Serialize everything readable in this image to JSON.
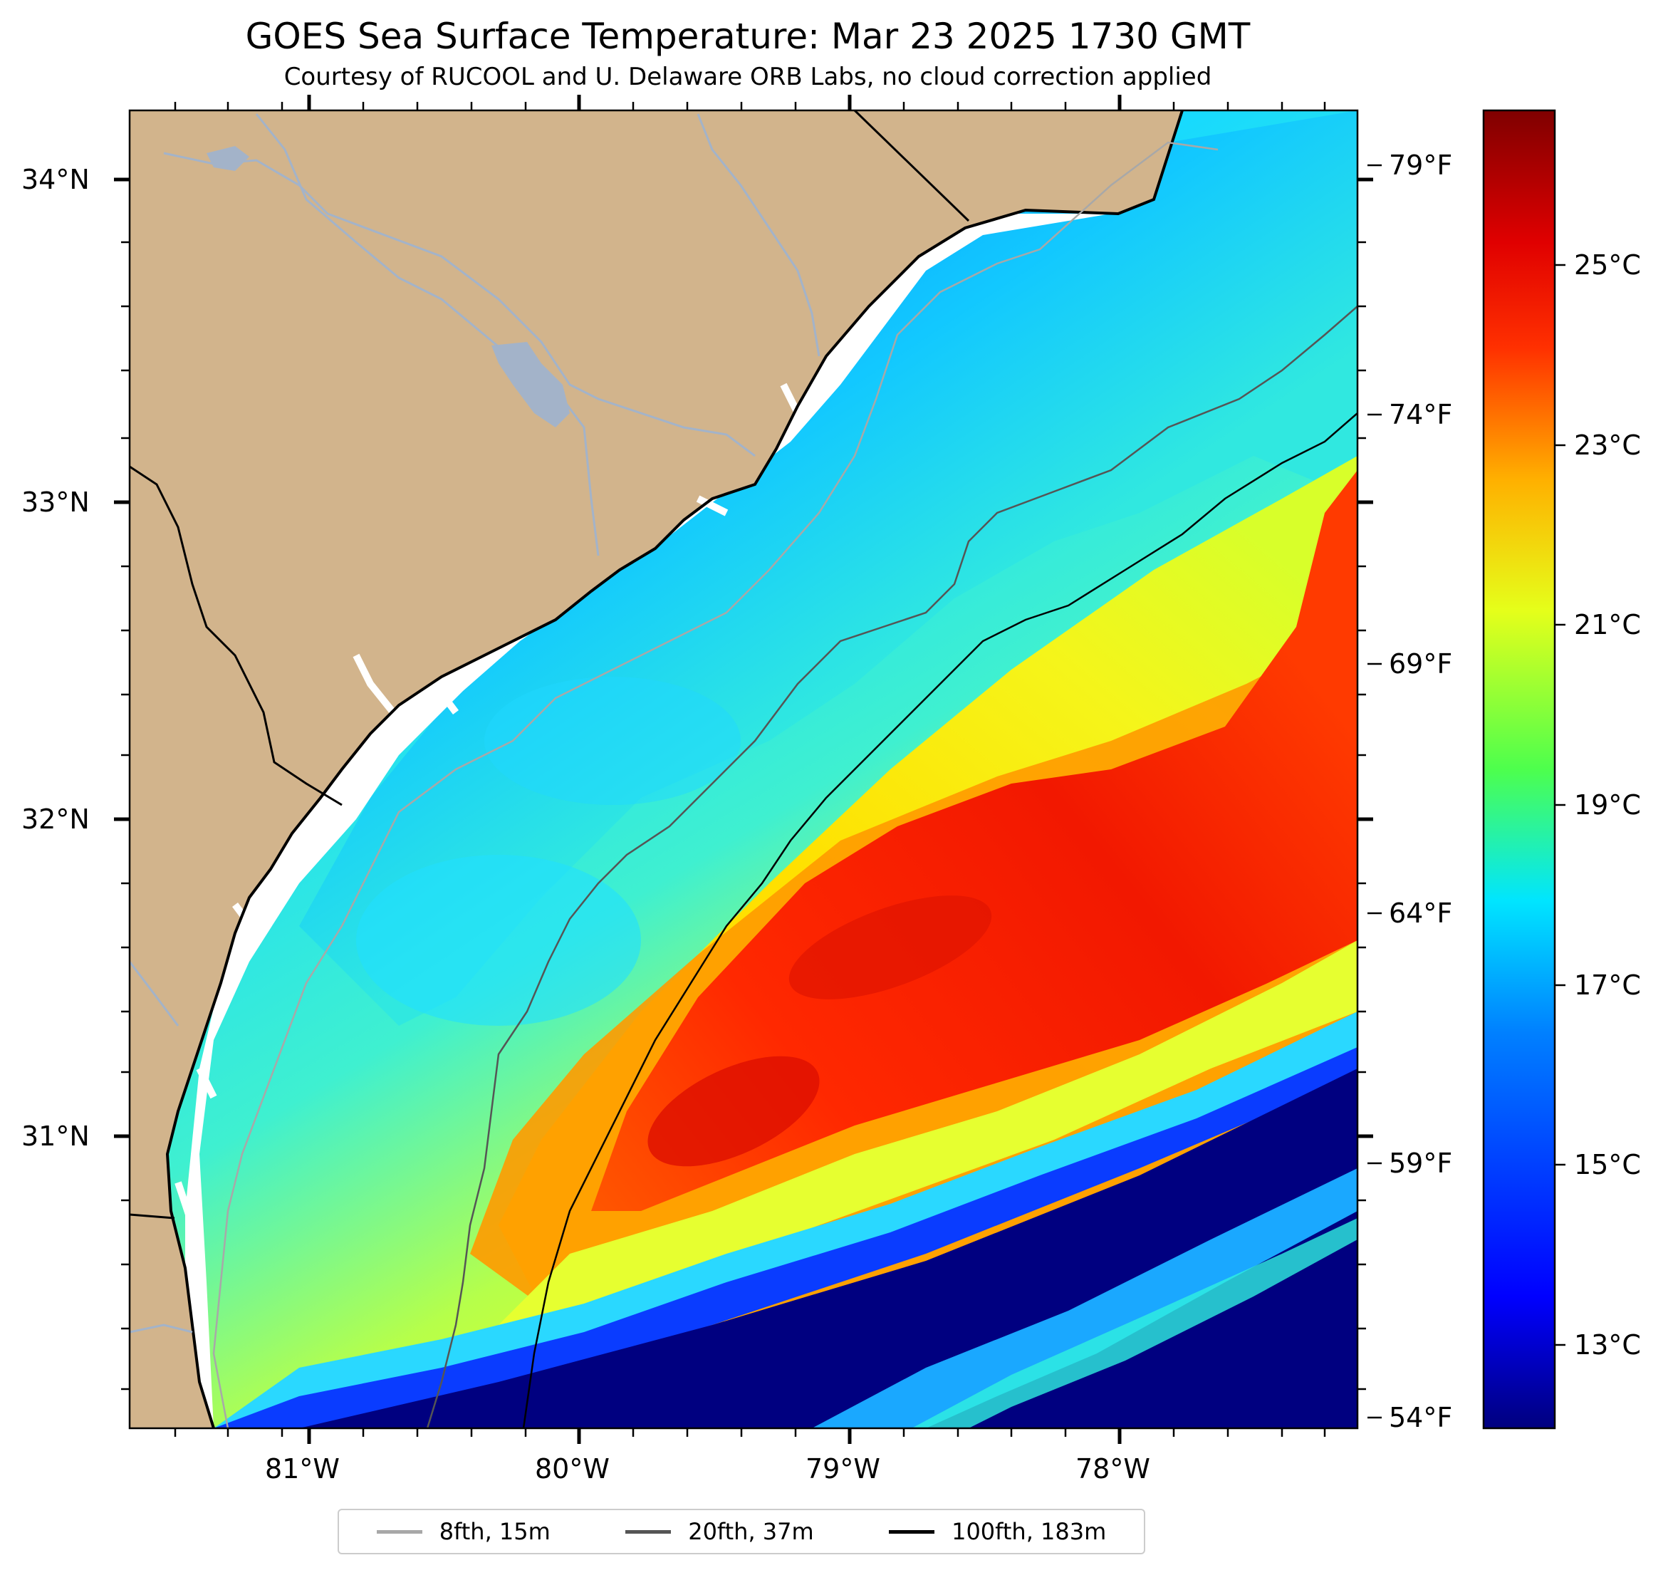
{
  "title": "GOES Sea Surface Temperature: Mar 23 2025 1730 GMT",
  "subtitle": "Courtesy of RUCOOL and U. Delaware ORB Labs, no cloud correction applied",
  "axes": {
    "lat_labels": [
      "34°N",
      "33°N",
      "32°N",
      "31°N"
    ],
    "lon_labels": [
      "81°W",
      "80°W",
      "79°W",
      "78°W"
    ],
    "fahrenheit_labels": [
      "79°F",
      "74°F",
      "69°F",
      "64°F",
      "59°F",
      "54°F"
    ]
  },
  "colorbar": {
    "labels": [
      "25°C",
      "23°C",
      "21°C",
      "19°C",
      "17°C",
      "15°C",
      "13°C"
    ],
    "colors": [
      "#00007f",
      "#0000ff",
      "#0080ff",
      "#00e5ff",
      "#4dff4d",
      "#e5ff1a",
      "#ffb000",
      "#ff3000",
      "#d40000",
      "#7f0000"
    ]
  },
  "legend": [
    {
      "label": "8fth, 15m",
      "color": "#a8a8a8"
    },
    {
      "label": "20fth, 37m",
      "color": "#555555"
    },
    {
      "label": "100fth, 183m",
      "color": "#000000"
    }
  ],
  "colors": {
    "land": "#d2b48c",
    "river": "#a3b3c9",
    "warm_core": "#ff2a00",
    "cold_water": "#000080"
  }
}
